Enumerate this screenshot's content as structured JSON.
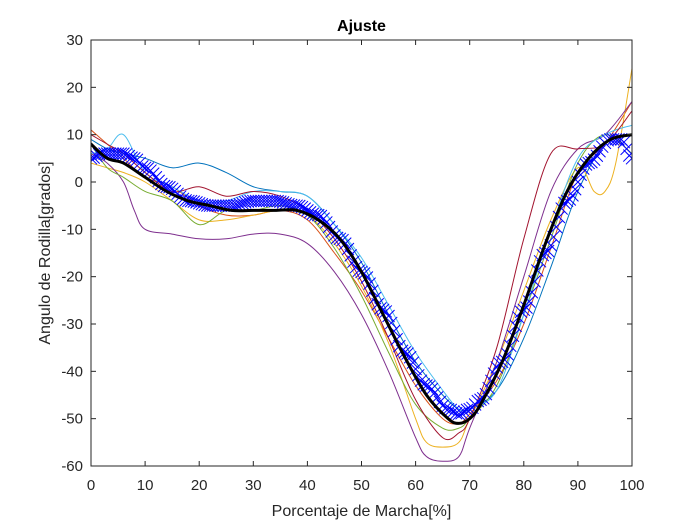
{
  "chart_data": {
    "type": "line",
    "title": "Ajuste",
    "xlabel": "Porcentaje de Marcha[%]",
    "ylabel": "Angulo de Rodilla[grados]",
    "xlim": [
      0,
      100
    ],
    "ylim": [
      -60,
      30
    ],
    "xticks": [
      "0",
      "10",
      "20",
      "30",
      "40",
      "50",
      "60",
      "70",
      "80",
      "90",
      "100"
    ],
    "yticks": [
      "30",
      "20",
      "10",
      "0",
      "-10",
      "-20",
      "-30",
      "-40",
      "-50",
      "-60"
    ],
    "grid": false,
    "legend": "none",
    "series": [
      {
        "color": "#0072BD",
        "x": [
          0,
          3,
          6,
          10,
          15,
          20,
          25,
          30,
          35,
          40,
          45,
          50,
          55,
          60,
          65,
          68,
          70,
          75,
          80,
          85,
          90,
          95,
          100
        ],
        "y": [
          9,
          7,
          6,
          5,
          3,
          4,
          2,
          -1,
          -2,
          -3,
          -9,
          -17,
          -28,
          -38,
          -45,
          -48,
          -48,
          -44,
          -33,
          -18,
          -2,
          8,
          10
        ]
      },
      {
        "color": "#D95319",
        "x": [
          0,
          3,
          6,
          10,
          15,
          20,
          25,
          30,
          35,
          40,
          45,
          50,
          55,
          60,
          65,
          68,
          70,
          75,
          80,
          85,
          90,
          95,
          100
        ],
        "y": [
          11,
          8,
          5,
          1,
          -1,
          -5,
          -7,
          -7,
          -6,
          -8,
          -15,
          -23,
          -33,
          -43,
          -50,
          -51,
          -49,
          -42,
          -30,
          -14,
          2,
          8,
          17
        ]
      },
      {
        "color": "#EDB120",
        "x": [
          0,
          3,
          6,
          10,
          15,
          20,
          25,
          30,
          35,
          40,
          45,
          50,
          55,
          60,
          62,
          65,
          68,
          70,
          75,
          80,
          85,
          90,
          93,
          95,
          97,
          100
        ],
        "y": [
          4,
          3,
          2,
          0,
          -4,
          -8,
          -8,
          -7,
          -6,
          -7,
          -13,
          -22,
          -34,
          -50,
          -55,
          -56,
          -55,
          -50,
          -38,
          -23,
          -8,
          3,
          -2,
          -2,
          4,
          24
        ]
      },
      {
        "color": "#7E2F8E",
        "x": [
          0,
          3,
          6,
          8,
          10,
          15,
          20,
          25,
          30,
          35,
          40,
          45,
          50,
          55,
          60,
          62,
          65,
          68,
          70,
          75,
          80,
          85,
          90,
          95,
          100
        ],
        "y": [
          6,
          4,
          0,
          -6,
          -10,
          -11,
          -12,
          -12,
          -11,
          -11,
          -13,
          -19,
          -28,
          -40,
          -54,
          -58,
          -59,
          -58,
          -52,
          -38,
          -20,
          -2,
          7,
          10,
          17
        ]
      },
      {
        "color": "#77AC30",
        "x": [
          0,
          3,
          6,
          10,
          15,
          20,
          25,
          30,
          35,
          40,
          45,
          50,
          55,
          60,
          65,
          68,
          70,
          75,
          80,
          85,
          90,
          95,
          100
        ],
        "y": [
          8,
          3,
          1,
          -2,
          -4,
          -9,
          -6,
          -6,
          -5,
          -7,
          -14,
          -24,
          -36,
          -47,
          -52,
          -52,
          -50,
          -43,
          -28,
          -12,
          4,
          10,
          6
        ]
      },
      {
        "color": "#4DBEEE",
        "x": [
          0,
          3,
          6,
          10,
          15,
          20,
          25,
          30,
          35,
          40,
          45,
          50,
          55,
          60,
          65,
          68,
          70,
          75,
          80,
          85,
          90,
          95,
          100
        ],
        "y": [
          6,
          7,
          10,
          2,
          -1,
          -4,
          -4,
          -2,
          -2,
          -3,
          -9,
          -16,
          -26,
          -36,
          -44,
          -48,
          -48,
          -44,
          -28,
          -10,
          5,
          10,
          12
        ]
      },
      {
        "color": "#A2142F",
        "x": [
          0,
          3,
          6,
          10,
          15,
          20,
          25,
          30,
          35,
          40,
          45,
          50,
          55,
          60,
          65,
          68,
          70,
          75,
          80,
          85,
          90,
          95,
          100
        ],
        "y": [
          10,
          8,
          6,
          2,
          -2,
          -1,
          -3,
          -2,
          -3,
          -6,
          -12,
          -21,
          -33,
          -46,
          -54,
          -53,
          -50,
          -35,
          -12,
          6,
          7,
          8,
          15
        ]
      },
      {
        "name": "",
        "style": "markers",
        "marker": "x",
        "color": "#0000FF",
        "x": [
          0,
          2,
          4,
          6,
          8,
          10,
          14,
          18,
          22,
          26,
          30,
          34,
          38,
          42,
          46,
          50,
          54,
          58,
          62,
          66,
          68,
          70,
          72,
          76,
          80,
          84,
          88,
          92,
          96,
          98,
          100
        ],
        "y": [
          5,
          6,
          6,
          6,
          5,
          3,
          -1,
          -4,
          -5,
          -5,
          -4,
          -4,
          -5,
          -7,
          -12,
          -19,
          -27,
          -36,
          -43,
          -48,
          -49,
          -48,
          -46,
          -38,
          -27,
          -15,
          -4,
          4,
          9,
          9,
          5
        ]
      },
      {
        "name": "",
        "style": "fit",
        "color": "#000000",
        "x": [
          0,
          3,
          6,
          10,
          14,
          18,
          22,
          26,
          30,
          34,
          38,
          42,
          46,
          50,
          54,
          58,
          62,
          66,
          68,
          70,
          72,
          76,
          80,
          84,
          88,
          92,
          96,
          100
        ],
        "y": [
          8,
          5,
          4,
          1,
          -2,
          -4,
          -5,
          -6,
          -6,
          -6,
          -6,
          -8,
          -12,
          -19,
          -28,
          -37,
          -45,
          -50,
          -51,
          -50,
          -47,
          -38,
          -26,
          -13,
          -2,
          5,
          9,
          10
        ]
      }
    ]
  }
}
